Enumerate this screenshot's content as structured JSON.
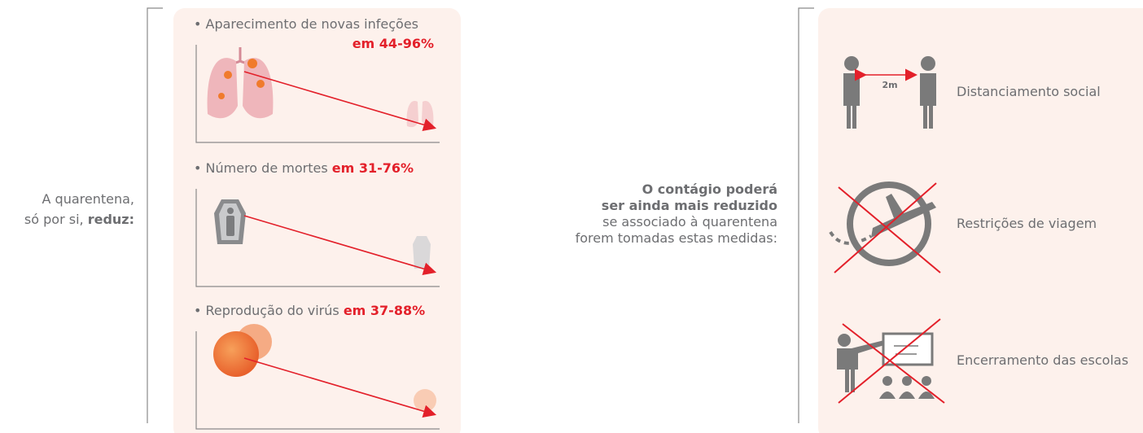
{
  "left": {
    "line1": "A quarentena,",
    "line2": "só por si,",
    "line2_bold": "reduz:"
  },
  "effects": [
    {
      "label": "• Aparecimento de novas infeções",
      "value": "em 44-96%"
    },
    {
      "label": "• Número de mortes",
      "value": "em 31-76%"
    },
    {
      "label": "• Reprodução do virús",
      "value": "em 37-88%"
    }
  ],
  "middle": {
    "bold_lines": [
      "O contágio poderá",
      "ser ainda mais reduzido"
    ],
    "lines": [
      "se associado à quarentena",
      "forem tomadas estas medidas:"
    ]
  },
  "measures": [
    {
      "label": "Distanciamento social",
      "distance": "2m"
    },
    {
      "label": "Restrições de viagem"
    },
    {
      "label": "Encerramento das escolas"
    }
  ]
}
